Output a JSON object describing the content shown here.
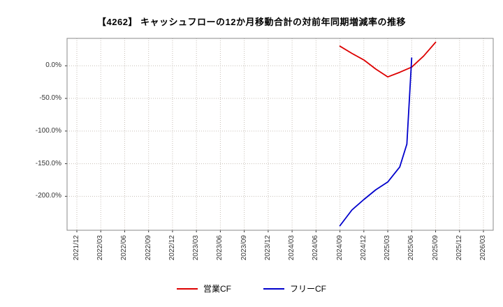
{
  "chart_data": {
    "type": "line",
    "title": "【4262】 キャッシュフローの12か月移動合計の対前年同期増減率の推移",
    "x_categories": [
      "2021/12",
      "2022/03",
      "2022/06",
      "2022/09",
      "2022/12",
      "2023/03",
      "2023/06",
      "2023/09",
      "2023/12",
      "2024/03",
      "2024/06",
      "2024/09",
      "2024/12",
      "2025/03",
      "2025/06",
      "2025/09",
      "2025/12",
      "2026/03"
    ],
    "y_ticks": [
      0,
      -50,
      -100,
      -150,
      -200
    ],
    "y_tick_labels": [
      "0.0%",
      "-50.0%",
      "-100.0%",
      "-150.0%",
      "-200.0%"
    ],
    "ylim": [
      -252,
      42
    ],
    "grid": true,
    "legend_position": "bottom",
    "x_axis_note": "x values in series points are fractional indexes into x_categories",
    "colors": {
      "grid": "#c6beb6",
      "border": "#888888",
      "axis_text": "#333333",
      "title_text": "#000000"
    },
    "series": [
      {
        "id": "operating-cf",
        "name": "営業CF",
        "color": "#dd0000",
        "points": [
          {
            "x": 11,
            "y": 30
          },
          {
            "x": 11.5,
            "y": 19
          },
          {
            "x": 12,
            "y": 9
          },
          {
            "x": 12.5,
            "y": -5
          },
          {
            "x": 13,
            "y": -17
          },
          {
            "x": 13.5,
            "y": -10
          },
          {
            "x": 14,
            "y": -2
          },
          {
            "x": 14.5,
            "y": 15
          },
          {
            "x": 15,
            "y": 36
          }
        ]
      },
      {
        "id": "free-cf",
        "name": "フリーCF",
        "color": "#0000cc",
        "points": [
          {
            "x": 11,
            "y": -245
          },
          {
            "x": 11.5,
            "y": -221
          },
          {
            "x": 12,
            "y": -205
          },
          {
            "x": 12.5,
            "y": -190
          },
          {
            "x": 13,
            "y": -178
          },
          {
            "x": 13.5,
            "y": -155
          },
          {
            "x": 13.8,
            "y": -120
          },
          {
            "x": 14,
            "y": 12
          }
        ]
      }
    ]
  }
}
